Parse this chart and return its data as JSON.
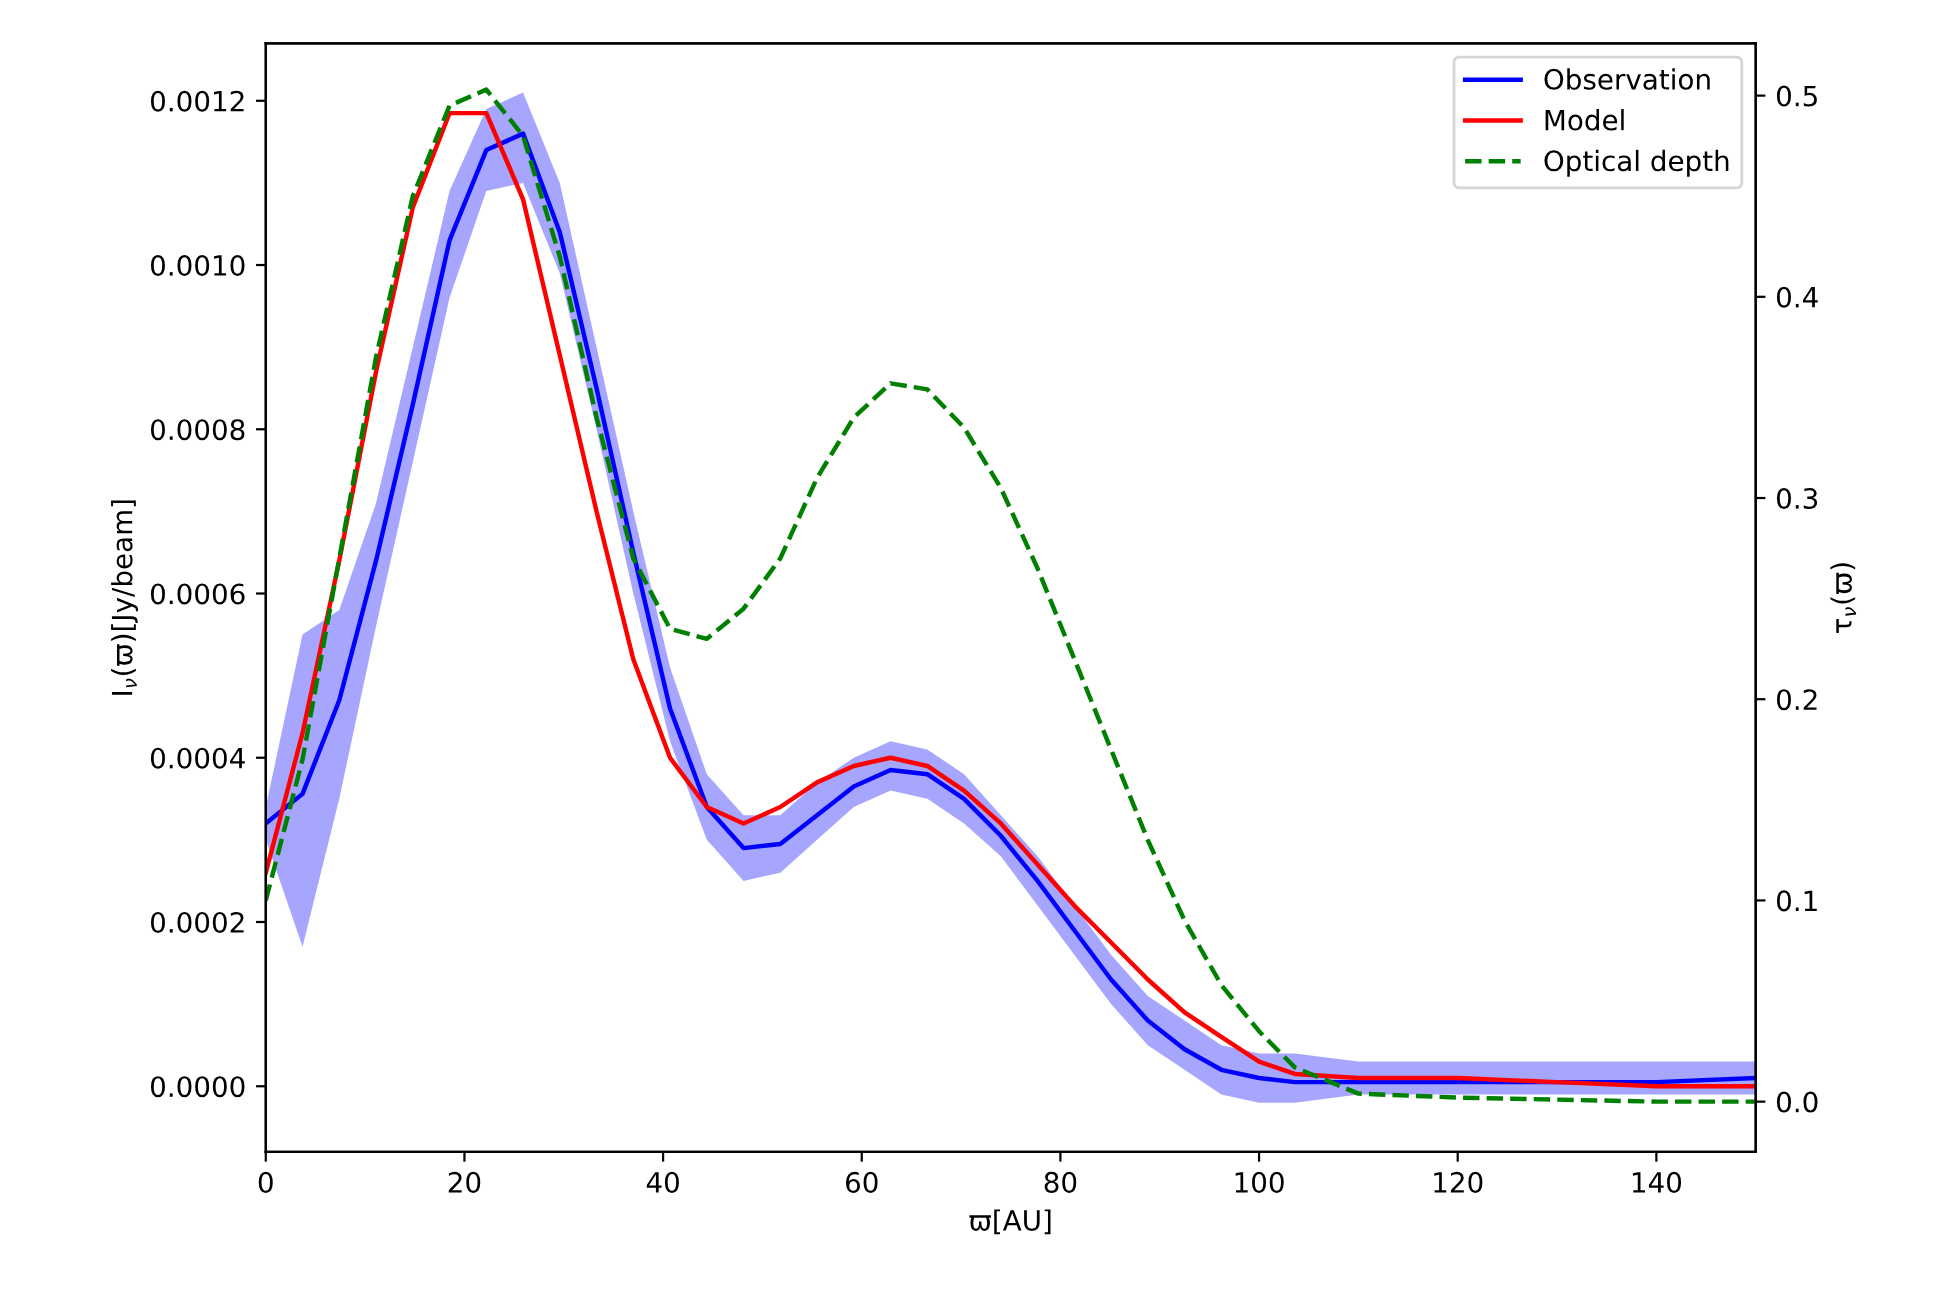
{
  "chart_data": {
    "type": "line",
    "xlabel": "ϖ[AU]",
    "ylabel": "I$_{ν}$(ϖ)[Jy/beam]",
    "y2label": "τ$_{ν}$(ϖ)",
    "x": [
      0,
      3.7,
      7.4,
      11.1,
      14.8,
      18.5,
      22.2,
      25.9,
      29.6,
      33.3,
      37,
      40.7,
      44.4,
      48.1,
      51.8,
      55.5,
      59.2,
      62.9,
      66.6,
      70.3,
      74,
      77.7,
      81.4,
      85.1,
      88.8,
      92.5,
      96.2,
      100,
      103.6,
      110,
      120,
      130,
      140,
      150
    ],
    "series": [
      {
        "name": "Observation",
        "color": "#0000ff",
        "values": [
          0.00032,
          0.000356,
          0.00047,
          0.00064,
          0.00083,
          0.00103,
          0.00114,
          0.00116,
          0.00104,
          0.00085,
          0.00065,
          0.00046,
          0.00034,
          0.00029,
          0.000295,
          0.00033,
          0.000365,
          0.000385,
          0.00038,
          0.00035,
          0.000305,
          0.00025,
          0.00019,
          0.00013,
          8e-05,
          4.5e-05,
          2e-05,
          1e-05,
          5e-06,
          5e-06,
          5e-06,
          5e-06,
          5e-06,
          1e-05
        ],
        "lower": [
          0.0003,
          0.00017,
          0.00035,
          0.00056,
          0.00076,
          0.00096,
          0.00109,
          0.0011,
          0.00099,
          0.0008,
          0.0006,
          0.00042,
          0.0003,
          0.00025,
          0.00026,
          0.0003,
          0.00034,
          0.00036,
          0.00035,
          0.00032,
          0.00028,
          0.00022,
          0.00016,
          0.0001,
          5e-05,
          2e-05,
          -1e-05,
          -2e-05,
          -2e-05,
          -1e-05,
          -1e-05,
          -1e-05,
          -1e-05,
          -1e-05
        ],
        "upper": [
          0.00034,
          0.00055,
          0.00058,
          0.00071,
          0.0009,
          0.00109,
          0.00119,
          0.00121,
          0.0011,
          0.0009,
          0.0007,
          0.00051,
          0.00038,
          0.00033,
          0.00033,
          0.00037,
          0.0004,
          0.00042,
          0.00041,
          0.00038,
          0.00033,
          0.00028,
          0.00022,
          0.00016,
          0.00011,
          8e-05,
          5e-05,
          4e-05,
          4e-05,
          3e-05,
          3e-05,
          3e-05,
          3e-05,
          3e-05
        ]
      },
      {
        "name": "Model",
        "color": "#ff0000",
        "values": [
          0.00026,
          0.00043,
          0.00064,
          0.00087,
          0.00107,
          0.001185,
          0.001185,
          0.00108,
          0.00089,
          0.0007,
          0.00052,
          0.0004,
          0.00034,
          0.00032,
          0.00034,
          0.00037,
          0.00039,
          0.0004,
          0.00039,
          0.00036,
          0.00032,
          0.00027,
          0.00022,
          0.000175,
          0.00013,
          9e-05,
          6e-05,
          3e-05,
          1.5e-05,
          1e-05,
          1e-05,
          5e-06,
          0.0,
          0.0
        ]
      },
      {
        "name": "Optical depth",
        "color": "#008000",
        "axis": "y2",
        "line_style": "dashed",
        "values": [
          0.1,
          0.17,
          0.27,
          0.37,
          0.45,
          0.495,
          0.503,
          0.48,
          0.42,
          0.34,
          0.27,
          0.235,
          0.23,
          0.245,
          0.27,
          0.31,
          0.34,
          0.357,
          0.354,
          0.335,
          0.305,
          0.265,
          0.22,
          0.175,
          0.13,
          0.09,
          0.058,
          0.035,
          0.017,
          0.004,
          0.002,
          0.001,
          0.0,
          0.0
        ]
      }
    ],
    "xlim": [
      0,
      150
    ],
    "xticks": [
      0,
      20,
      40,
      60,
      80,
      100,
      120,
      140
    ],
    "ylim": [
      -8e-05,
      0.00127
    ],
    "yticks": [
      {
        "value": 0,
        "label": "0.0000"
      },
      {
        "value": 0.0002,
        "label": "0.0002"
      },
      {
        "value": 0.0004,
        "label": "0.0004"
      },
      {
        "value": 0.0006,
        "label": "0.0006"
      },
      {
        "value": 0.0008,
        "label": "0.0008"
      },
      {
        "value": 0.001,
        "label": "0.0010"
      },
      {
        "value": 0.0012,
        "label": "0.0012"
      }
    ],
    "y2lim": [
      -0.025,
      0.526
    ],
    "y2ticks": [
      {
        "value": 0,
        "label": "0.0"
      },
      {
        "value": 0.1,
        "label": "0.1"
      },
      {
        "value": 0.2,
        "label": "0.2"
      },
      {
        "value": 0.3,
        "label": "0.3"
      },
      {
        "value": 0.4,
        "label": "0.4"
      },
      {
        "value": 0.5,
        "label": "0.5"
      }
    ],
    "grid": false,
    "legend": "top right"
  }
}
